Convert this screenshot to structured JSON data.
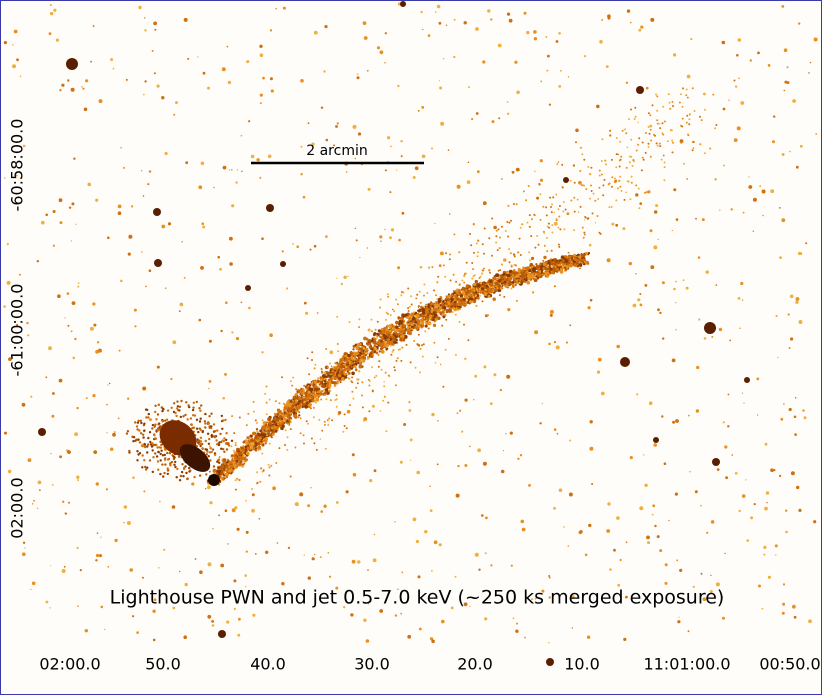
{
  "image": {
    "scale_bar": "2 arcmin",
    "caption": "Lighthouse PWN and jet 0.5-7.0 keV (~250 ks merged exposure)",
    "ra_labels": [
      "02:00.0",
      "50.0",
      "40.0",
      "30.0",
      "20.0",
      "10.0",
      "11:01:00.0",
      "00:50.0"
    ],
    "dec_labels": [
      "-60:58:00.0",
      "-61:00:00.0",
      "02:00.0"
    ]
  }
}
